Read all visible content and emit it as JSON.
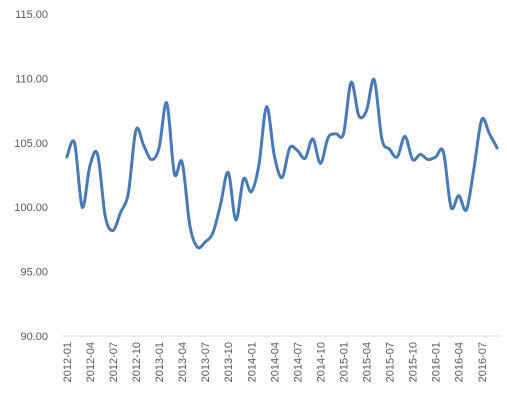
{
  "chart_data": {
    "type": "line",
    "title": "",
    "xlabel": "",
    "ylabel": "",
    "ylim": [
      90,
      115
    ],
    "y_ticks": [
      "90.00",
      "95.00",
      "100.00",
      "105.00",
      "110.00",
      "115.00"
    ],
    "grid": false,
    "legend": "none",
    "x_tick_labels": [
      "2012-01",
      "2012-04",
      "2012-07",
      "2012-10",
      "2013-01",
      "2013-04",
      "2013-07",
      "2013-10",
      "2014-01",
      "2014-04",
      "2014-07",
      "2014-10",
      "2015-01",
      "2015-04",
      "2015-07",
      "2015-10",
      "2016-01",
      "2016-04",
      "2016-07"
    ],
    "series": [
      {
        "color": "#4a7ab5",
        "x": [
          "2012-01",
          "2012-02",
          "2012-03",
          "2012-04",
          "2012-05",
          "2012-06",
          "2012-07",
          "2012-08",
          "2012-09",
          "2012-10",
          "2012-11",
          "2012-12",
          "2013-01",
          "2013-02",
          "2013-03",
          "2013-04",
          "2013-05",
          "2013-06",
          "2013-07",
          "2013-08",
          "2013-09",
          "2013-10",
          "2013-11",
          "2013-12",
          "2014-01",
          "2014-02",
          "2014-03",
          "2014-04",
          "2014-05",
          "2014-06",
          "2014-07",
          "2014-08",
          "2014-09",
          "2014-10",
          "2014-11",
          "2014-12",
          "2015-01",
          "2015-02",
          "2015-03",
          "2015-04",
          "2015-05",
          "2015-06",
          "2015-07",
          "2015-08",
          "2015-09",
          "2015-10",
          "2015-11",
          "2015-12",
          "2016-01",
          "2016-02",
          "2016-03",
          "2016-04",
          "2016-05",
          "2016-06",
          "2016-07",
          "2016-08",
          "2016-09"
        ],
        "values": [
          103.9,
          105.0,
          100.0,
          103.2,
          104.1,
          99.3,
          98.2,
          99.6,
          101.1,
          106.0,
          104.8,
          103.7,
          104.6,
          108.1,
          102.6,
          103.5,
          98.6,
          96.9,
          97.3,
          98.0,
          100.2,
          102.7,
          99.0,
          102.2,
          101.2,
          103.3,
          107.8,
          104.0,
          102.3,
          104.6,
          104.4,
          103.8,
          105.3,
          103.4,
          105.4,
          105.7,
          105.7,
          109.7,
          107.1,
          107.5,
          109.9,
          105.3,
          104.5,
          103.9,
          105.5,
          103.7,
          104.1,
          103.7,
          103.9,
          104.3,
          100.0,
          100.9,
          99.8,
          103.1,
          106.8,
          105.7,
          104.6
        ]
      }
    ]
  }
}
